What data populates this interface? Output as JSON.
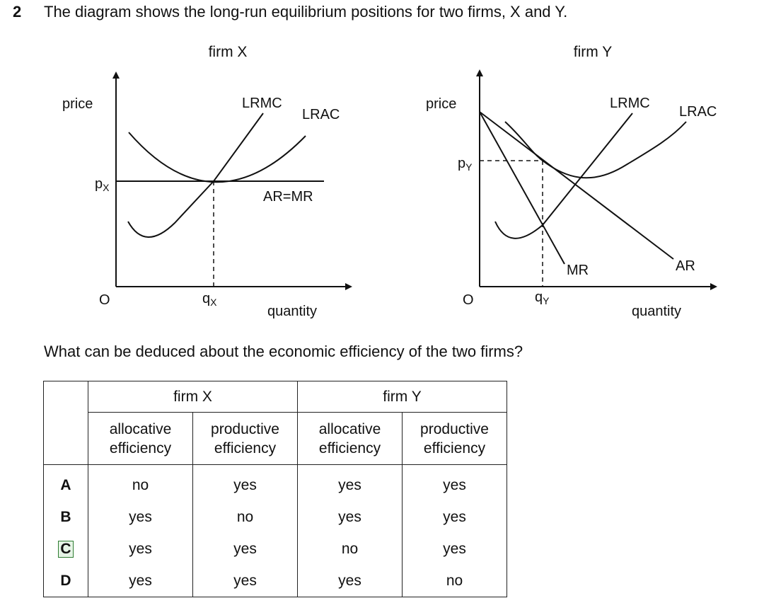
{
  "question": {
    "number": "2",
    "text": "The diagram shows the long-run equilibrium positions for two firms, X and Y.",
    "sub_question": "What can be deduced about the economic efficiency of the two firms?"
  },
  "diagram": {
    "firm_x": {
      "title": "firm X",
      "y_axis_label": "price",
      "x_axis_label": "quantity",
      "origin": "O",
      "price_label": "p",
      "price_subscript": "X",
      "quantity_label": "q",
      "quantity_subscript": "X",
      "curves": {
        "lrmc": "LRMC",
        "lrac": "LRAC",
        "ar_mr": "AR=MR"
      }
    },
    "firm_y": {
      "title": "firm Y",
      "y_axis_label": "price",
      "x_axis_label": "quantity",
      "origin": "O",
      "price_label": "p",
      "price_subscript": "Y",
      "quantity_label": "q",
      "quantity_subscript": "Y",
      "curves": {
        "lrmc": "LRMC",
        "lrac": "LRAC",
        "mr": "MR",
        "ar": "AR"
      }
    }
  },
  "table": {
    "group_headers": [
      "firm X",
      "firm Y"
    ],
    "column_headers": [
      [
        "allocative",
        "efficiency"
      ],
      [
        "productive",
        "efficiency"
      ],
      [
        "allocative",
        "efficiency"
      ],
      [
        "productive",
        "efficiency"
      ]
    ],
    "rows": [
      {
        "letter": "A",
        "values": [
          "no",
          "yes",
          "yes",
          "yes"
        ]
      },
      {
        "letter": "B",
        "values": [
          "yes",
          "no",
          "yes",
          "yes"
        ]
      },
      {
        "letter": "C",
        "values": [
          "yes",
          "yes",
          "no",
          "yes"
        ],
        "marked": true
      },
      {
        "letter": "D",
        "values": [
          "yes",
          "yes",
          "yes",
          "no"
        ]
      }
    ]
  }
}
